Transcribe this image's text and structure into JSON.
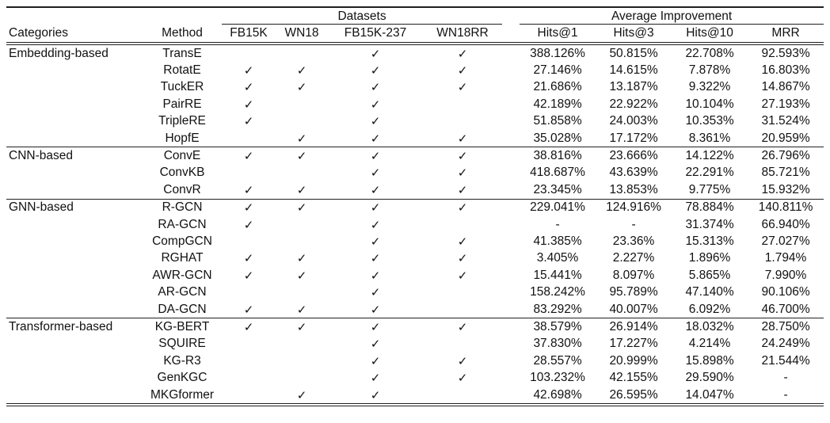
{
  "table": {
    "group_headers": [
      {
        "label": "Datasets"
      },
      {
        "label": "Average Improvement"
      }
    ],
    "columns": [
      "Categories",
      "Method",
      "FB15K",
      "WN18",
      "FB15K-237",
      "WN18RR",
      "Hits@1",
      "Hits@3",
      "Hits@10",
      "MRR"
    ],
    "check_glyph": "✓",
    "missing_glyph": "-",
    "text_color": "#111111",
    "rule_color": "#1f1f1f",
    "sections": [
      {
        "category": "Embedding-based",
        "rows": [
          {
            "method": "TransE",
            "datasets": [
              false,
              false,
              true,
              true
            ],
            "metrics": [
              "388.126%",
              "50.815%",
              "22.708%",
              "92.593%"
            ]
          },
          {
            "method": "RotatE",
            "datasets": [
              true,
              true,
              true,
              true
            ],
            "metrics": [
              "27.146%",
              "14.615%",
              "7.878%",
              "16.803%"
            ]
          },
          {
            "method": "TuckER",
            "datasets": [
              true,
              true,
              true,
              true
            ],
            "metrics": [
              "21.686%",
              "13.187%",
              "9.322%",
              "14.867%"
            ]
          },
          {
            "method": "PairRE",
            "datasets": [
              true,
              false,
              true,
              false
            ],
            "metrics": [
              "42.189%",
              "22.922%",
              "10.104%",
              "27.193%"
            ]
          },
          {
            "method": "TripleRE",
            "datasets": [
              true,
              false,
              true,
              false
            ],
            "metrics": [
              "51.858%",
              "24.003%",
              "10.353%",
              "31.524%"
            ]
          },
          {
            "method": "HopfE",
            "datasets": [
              false,
              true,
              true,
              true
            ],
            "metrics": [
              "35.028%",
              "17.172%",
              "8.361%",
              "20.959%"
            ]
          }
        ]
      },
      {
        "category": "CNN-based",
        "rows": [
          {
            "method": "ConvE",
            "datasets": [
              true,
              true,
              true,
              true
            ],
            "metrics": [
              "38.816%",
              "23.666%",
              "14.122%",
              "26.796%"
            ]
          },
          {
            "method": "ConvKB",
            "datasets": [
              false,
              false,
              true,
              true
            ],
            "metrics": [
              "418.687%",
              "43.639%",
              "22.291%",
              "85.721%"
            ]
          },
          {
            "method": "ConvR",
            "datasets": [
              true,
              true,
              true,
              true
            ],
            "metrics": [
              "23.345%",
              "13.853%",
              "9.775%",
              "15.932%"
            ]
          }
        ]
      },
      {
        "category": "GNN-based",
        "rows": [
          {
            "method": "R-GCN",
            "datasets": [
              true,
              true,
              true,
              true
            ],
            "metrics": [
              "229.041%",
              "124.916%",
              "78.884%",
              "140.811%"
            ]
          },
          {
            "method": "RA-GCN",
            "datasets": [
              true,
              false,
              true,
              false
            ],
            "metrics": [
              "-",
              "-",
              "31.374%",
              "66.940%"
            ]
          },
          {
            "method": "CompGCN",
            "datasets": [
              false,
              false,
              true,
              true
            ],
            "metrics": [
              "41.385%",
              "23.36%",
              "15.313%",
              "27.027%"
            ]
          },
          {
            "method": "RGHAT",
            "datasets": [
              true,
              true,
              true,
              true
            ],
            "metrics": [
              "3.405%",
              "2.227%",
              "1.896%",
              "1.794%"
            ]
          },
          {
            "method": "AWR-GCN",
            "datasets": [
              true,
              true,
              true,
              true
            ],
            "metrics": [
              "15.441%",
              "8.097%",
              "5.865%",
              "7.990%"
            ]
          },
          {
            "method": "AR-GCN",
            "datasets": [
              false,
              false,
              true,
              false
            ],
            "metrics": [
              "158.242%",
              "95.789%",
              "47.140%",
              "90.106%"
            ]
          },
          {
            "method": "DA-GCN",
            "datasets": [
              true,
              true,
              true,
              false
            ],
            "metrics": [
              "83.292%",
              "40.007%",
              "6.092%",
              "46.700%"
            ]
          }
        ]
      },
      {
        "category": "Transformer-based",
        "rows": [
          {
            "method": "KG-BERT",
            "datasets": [
              true,
              true,
              true,
              true
            ],
            "metrics": [
              "38.579%",
              "26.914%",
              "18.032%",
              "28.750%"
            ]
          },
          {
            "method": "SQUIRE",
            "datasets": [
              false,
              false,
              true,
              false
            ],
            "metrics": [
              "37.830%",
              "17.227%",
              "4.214%",
              "24.249%"
            ]
          },
          {
            "method": "KG-R3",
            "datasets": [
              false,
              false,
              true,
              true
            ],
            "metrics": [
              "28.557%",
              "20.999%",
              "15.898%",
              "21.544%"
            ]
          },
          {
            "method": "GenKGC",
            "datasets": [
              false,
              false,
              true,
              true
            ],
            "metrics": [
              "103.232%",
              "42.155%",
              "29.590%",
              "-"
            ]
          },
          {
            "method": "MKGformer",
            "datasets": [
              false,
              true,
              true,
              false
            ],
            "metrics": [
              "42.698%",
              "26.595%",
              "14.047%",
              "-"
            ]
          }
        ]
      }
    ]
  }
}
